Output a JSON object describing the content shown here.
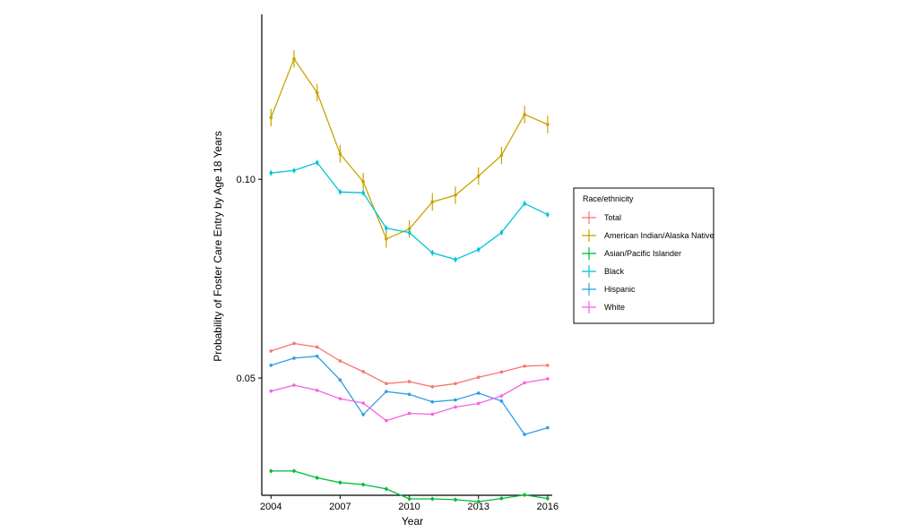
{
  "chart_data": {
    "type": "line",
    "title": "",
    "xlabel": "Year",
    "ylabel": "Probability of Foster Care Entry by Age 18 Years",
    "x": [
      2004,
      2005,
      2006,
      2007,
      2008,
      2009,
      2010,
      2011,
      2012,
      2013,
      2014,
      2015,
      2016
    ],
    "x_ticks": [
      "2004",
      "2007",
      "2010",
      "2013",
      "2016"
    ],
    "y_ticks": [
      "0.05",
      "0.10"
    ],
    "ylim": [
      0.0205,
      0.1415
    ],
    "xlim": [
      2003.6,
      2016.2
    ],
    "legend_title": "Race/ethnicity",
    "legend_position": "right",
    "series": [
      {
        "name": "Total",
        "color": "#F8766D",
        "values": [
          0.0568,
          0.0587,
          0.0578,
          0.0543,
          0.0516,
          0.0486,
          0.0491,
          0.0478,
          0.0486,
          0.0502,
          0.0515,
          0.053,
          0.0532
        ],
        "error": [
          0.0003,
          0.0003,
          0.0003,
          0.0003,
          0.0003,
          0.0003,
          0.0003,
          0.0003,
          0.0003,
          0.0003,
          0.0003,
          0.0003,
          0.0003
        ]
      },
      {
        "name": "American Indian/Alaska Native",
        "color": "#C9A400",
        "values": [
          0.1155,
          0.1303,
          0.1218,
          0.1064,
          0.0994,
          0.085,
          0.0875,
          0.0943,
          0.096,
          0.1008,
          0.106,
          0.1163,
          0.1138
        ],
        "error": [
          0.0022,
          0.0022,
          0.0022,
          0.0022,
          0.0022,
          0.0022,
          0.0022,
          0.0022,
          0.0022,
          0.0022,
          0.0022,
          0.0022,
          0.0022
        ]
      },
      {
        "name": "Asian/Pacific Islander",
        "color": "#00BA38",
        "values": [
          0.0266,
          0.0266,
          0.0249,
          0.0237,
          0.0232,
          0.0221,
          0.0196,
          0.0196,
          0.0194,
          0.0189,
          0.0197,
          0.0206,
          0.0197
        ],
        "error": [
          0.0005,
          0.0005,
          0.0005,
          0.0005,
          0.0005,
          0.0005,
          0.0005,
          0.0005,
          0.0005,
          0.0005,
          0.0005,
          0.0005,
          0.0005
        ]
      },
      {
        "name": "Black",
        "color": "#00C5D4",
        "values": [
          0.1016,
          0.1022,
          0.1042,
          0.0968,
          0.0966,
          0.0877,
          0.0866,
          0.0815,
          0.0798,
          0.0823,
          0.0866,
          0.0939,
          0.0911
        ],
        "error": [
          0.0007,
          0.0007,
          0.0007,
          0.0007,
          0.0007,
          0.0007,
          0.0007,
          0.0007,
          0.0007,
          0.0007,
          0.0007,
          0.0007,
          0.0007
        ]
      },
      {
        "name": "Hispanic",
        "color": "#2E9FE6",
        "values": [
          0.0532,
          0.055,
          0.0555,
          0.0495,
          0.0408,
          0.0466,
          0.0459,
          0.044,
          0.0445,
          0.0462,
          0.0442,
          0.0358,
          0.0375
        ],
        "error": [
          0.0004,
          0.0004,
          0.0004,
          0.0004,
          0.0004,
          0.0004,
          0.0004,
          0.0004,
          0.0004,
          0.0004,
          0.0004,
          0.0004,
          0.0004
        ]
      },
      {
        "name": "White",
        "color": "#F564E3",
        "values": [
          0.0467,
          0.0482,
          0.0469,
          0.0448,
          0.0437,
          0.0393,
          0.0411,
          0.0409,
          0.0427,
          0.0436,
          0.0455,
          0.0488,
          0.0498
        ],
        "error": [
          0.0003,
          0.0003,
          0.0003,
          0.0003,
          0.0003,
          0.0003,
          0.0003,
          0.0003,
          0.0003,
          0.0003,
          0.0003,
          0.0003,
          0.0003
        ]
      }
    ]
  }
}
